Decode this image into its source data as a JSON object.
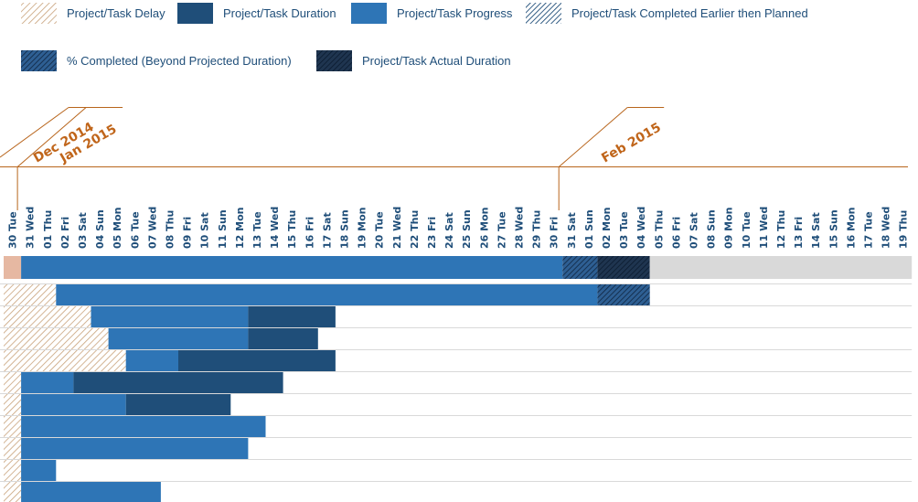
{
  "legend": [
    {
      "label": "Project/Task Delay",
      "style": "delay"
    },
    {
      "label": "Project/Task Duration",
      "style": "duration"
    },
    {
      "label": "Project/Task Progress",
      "style": "progress"
    },
    {
      "label": "Project/Task Completed Earlier then Planned",
      "style": "earlier"
    },
    {
      "label": "% Completed (Beyond Projected Duration)",
      "style": "beyond"
    },
    {
      "label": "Project/Task Actual Duration",
      "style": "actual"
    }
  ],
  "colors": {
    "progress": "#2e75b6",
    "duration": "#1f4e79",
    "actual": "#0f2540",
    "delay": "#c8a27a",
    "delay_summary": "#e6b8a2",
    "remaining": "#d9d9d9",
    "month_text": "#c0651a",
    "month_line": "#b8651c",
    "day_text": "#1f4e79"
  },
  "chart_data": {
    "type": "gantt",
    "months": [
      {
        "label": "Dec 2014",
        "at_day": 0
      },
      {
        "label": "Jan 2015",
        "at_day": 1
      },
      {
        "label": "Feb 2015",
        "at_day": 32
      }
    ],
    "days": [
      "30 Tue",
      "31 Wed",
      "01 Thu",
      "02 Fri",
      "03 Sat",
      "04 Sun",
      "05 Mon",
      "06 Tue",
      "07 Wed",
      "08 Thu",
      "09 Fri",
      "10 Sat",
      "11 Sun",
      "12 Mon",
      "13 Tue",
      "14 Wed",
      "15 Thu",
      "16 Fri",
      "17 Sat",
      "18 Sun",
      "19 Mon",
      "20 Tue",
      "21 Wed",
      "22 Thu",
      "23 Fri",
      "24 Sat",
      "25 Sun",
      "26 Mon",
      "27 Tue",
      "28 Wed",
      "29 Thu",
      "30 Fri",
      "31 Sat",
      "01 Sun",
      "02 Mon",
      "03 Tue",
      "04 Wed",
      "05 Thu",
      "06 Fri",
      "07 Sat",
      "08 Sun",
      "09 Mon",
      "10 Tue",
      "11 Wed",
      "12 Thu",
      "13 Fri",
      "14 Sat",
      "15 Sun",
      "16 Mon",
      "17 Tue",
      "18 Wed",
      "19 Thu"
    ],
    "summary": {
      "segments": [
        {
          "type": "delay",
          "start": 0,
          "end": 1
        },
        {
          "type": "progress",
          "start": 1,
          "end": 32
        },
        {
          "type": "beyond",
          "start": 32,
          "end": 34
        },
        {
          "type": "actual",
          "start": 34,
          "end": 37
        },
        {
          "type": "remaining",
          "start": 37,
          "end": 52
        }
      ]
    },
    "tasks": [
      {
        "segments": [
          {
            "type": "delay",
            "start": 0,
            "end": 3
          },
          {
            "type": "progress",
            "start": 3,
            "end": 34
          },
          {
            "type": "beyond",
            "start": 34,
            "end": 37
          }
        ]
      },
      {
        "segments": [
          {
            "type": "delay",
            "start": 0,
            "end": 5
          },
          {
            "type": "progress",
            "start": 5,
            "end": 14
          },
          {
            "type": "duration",
            "start": 14,
            "end": 19
          }
        ]
      },
      {
        "segments": [
          {
            "type": "delay",
            "start": 0,
            "end": 6
          },
          {
            "type": "progress",
            "start": 6,
            "end": 14
          },
          {
            "type": "duration",
            "start": 14,
            "end": 18
          }
        ]
      },
      {
        "segments": [
          {
            "type": "delay",
            "start": 0,
            "end": 7
          },
          {
            "type": "progress",
            "start": 7,
            "end": 10
          },
          {
            "type": "duration",
            "start": 10,
            "end": 19
          }
        ]
      },
      {
        "segments": [
          {
            "type": "delay",
            "start": 0,
            "end": 1
          },
          {
            "type": "progress",
            "start": 1,
            "end": 4
          },
          {
            "type": "duration",
            "start": 4,
            "end": 16
          }
        ]
      },
      {
        "segments": [
          {
            "type": "delay",
            "start": 0,
            "end": 1
          },
          {
            "type": "progress",
            "start": 1,
            "end": 7
          },
          {
            "type": "duration",
            "start": 7,
            "end": 13
          }
        ]
      },
      {
        "segments": [
          {
            "type": "delay",
            "start": 0,
            "end": 1
          },
          {
            "type": "progress",
            "start": 1,
            "end": 15
          }
        ]
      },
      {
        "segments": [
          {
            "type": "delay",
            "start": 0,
            "end": 1
          },
          {
            "type": "progress",
            "start": 1,
            "end": 14
          }
        ]
      },
      {
        "segments": [
          {
            "type": "delay",
            "start": 0,
            "end": 1
          },
          {
            "type": "progress",
            "start": 1,
            "end": 3
          }
        ]
      },
      {
        "segments": [
          {
            "type": "delay",
            "start": 0,
            "end": 1
          },
          {
            "type": "progress",
            "start": 1,
            "end": 9
          }
        ]
      }
    ]
  }
}
